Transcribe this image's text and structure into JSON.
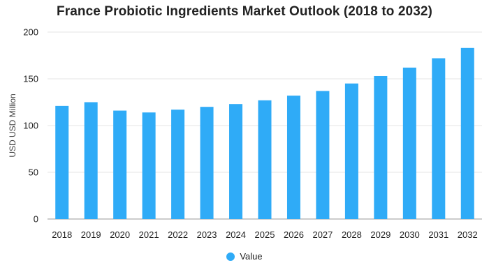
{
  "chart_data": {
    "type": "bar",
    "title": "France Probiotic Ingredients Market Outlook (2018 to 2032)",
    "xlabel": "",
    "ylabel": "USD USD Million",
    "ylim": [
      0,
      200
    ],
    "yticks": [
      0,
      50,
      100,
      150,
      200
    ],
    "grid": true,
    "legend_position": "bottom",
    "bar_color": "#2fabf7",
    "categories": [
      "2018",
      "2019",
      "2020",
      "2021",
      "2022",
      "2023",
      "2024",
      "2025",
      "2026",
      "2027",
      "2028",
      "2029",
      "2030",
      "2031",
      "2032"
    ],
    "series": [
      {
        "name": "Value",
        "values": [
          121,
          125,
          116,
          114,
          117,
          120,
          123,
          127,
          132,
          137,
          145,
          153,
          162,
          172,
          183
        ]
      }
    ]
  }
}
